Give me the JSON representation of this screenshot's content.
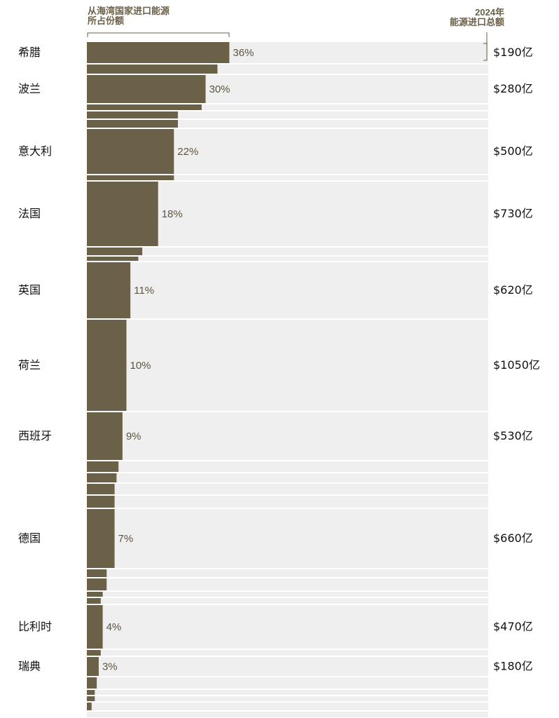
{
  "colors": {
    "bar": "#6b6048",
    "track": "#efefef",
    "label_pct": "#5e5440",
    "text": "#111111"
  },
  "header": {
    "share_line1": "从海湾国家进口能源",
    "share_line2": "所占份额",
    "total_line1": "2024年",
    "total_line2": "能源进口总额"
  },
  "chart_data": {
    "type": "bar",
    "orientation": "horizontal",
    "xlim": [
      0,
      100
    ],
    "rows": [
      {
        "country": "希腊",
        "share": 36,
        "share_label": "36%",
        "total": "$190亿"
      },
      {
        "country": "",
        "share": 33
      },
      {
        "country": "波兰",
        "share": 30,
        "share_label": "30%",
        "total": "$280亿"
      },
      {
        "country": "",
        "share": 29
      },
      {
        "country": "",
        "share": 23
      },
      {
        "country": "",
        "share": 23
      },
      {
        "country": "意大利",
        "share": 22,
        "share_label": "22%",
        "total": "$500亿"
      },
      {
        "country": "",
        "share": 22
      },
      {
        "country": "法国",
        "share": 18,
        "share_label": "18%",
        "total": "$730亿"
      },
      {
        "country": "",
        "share": 14
      },
      {
        "country": "",
        "share": 13
      },
      {
        "country": "英国",
        "share": 11,
        "share_label": "11%",
        "total": "$620亿"
      },
      {
        "country": "荷兰",
        "share": 10,
        "share_label": "10%",
        "total": "$1050亿"
      },
      {
        "country": "西班牙",
        "share": 9,
        "share_label": "9%",
        "total": "$530亿"
      },
      {
        "country": "",
        "share": 8
      },
      {
        "country": "",
        "share": 7.5
      },
      {
        "country": "",
        "share": 7
      },
      {
        "country": "",
        "share": 7
      },
      {
        "country": "德国",
        "share": 7,
        "share_label": "7%",
        "total": "$660亿"
      },
      {
        "country": "",
        "share": 5
      },
      {
        "country": "",
        "share": 5
      },
      {
        "country": "",
        "share": 4
      },
      {
        "country": "",
        "share": 3.5
      },
      {
        "country": "比利时",
        "share": 4,
        "share_label": "4%",
        "total": "$470亿"
      },
      {
        "country": "",
        "share": 3.5
      },
      {
        "country": "瑞典",
        "share": 3,
        "share_label": "3%",
        "total": "$180亿"
      },
      {
        "country": "",
        "share": 2.5
      },
      {
        "country": "",
        "share": 2
      },
      {
        "country": "",
        "share": 2
      },
      {
        "country": "",
        "share": 1.2
      },
      {
        "country": "",
        "share": 0
      },
      {
        "country": "",
        "share": 0
      },
      {
        "country": "",
        "share": 0
      },
      {
        "country": "",
        "share": 0
      }
    ]
  }
}
